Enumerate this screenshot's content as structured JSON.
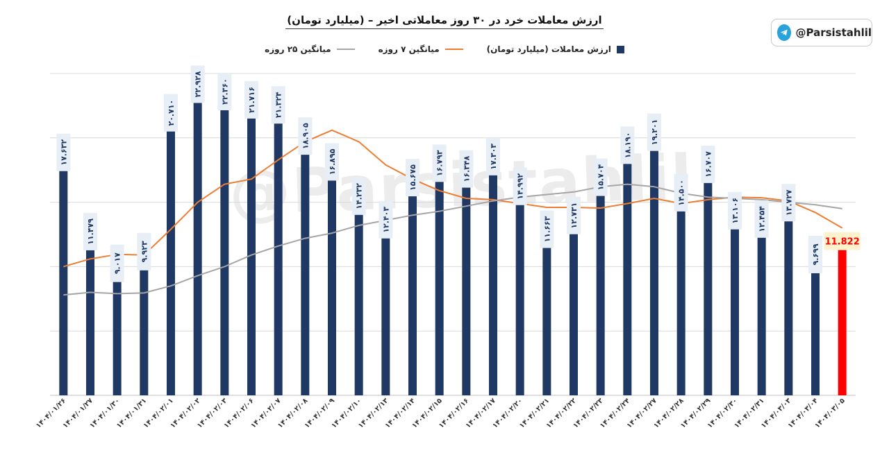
{
  "title": "ارزش معاملات خرد در ۳۰ روز معاملاتی اخیر – (میلیارد تومان)",
  "legend": {
    "bars": "ارزش معاملات (میلیارد تومان)",
    "ma7": "میانگین ۷ روزه",
    "ma25": "میانگین ۲۵ روزه"
  },
  "brand": {
    "handle": "@Parsistahlil",
    "icon": "telegram-icon"
  },
  "watermark": "@Parsistahlil",
  "colors": {
    "bar": "#1f3864",
    "bar_highlight": "#ff0000",
    "ma7": "#ed7d31",
    "ma25": "#a5a5a5",
    "label_bg": "#e7eef6",
    "highlight_label_bg": "#fdf2cc",
    "grid": "#d9d9d9"
  },
  "chart_data": {
    "type": "bar",
    "grid": true,
    "legend_position": "top",
    "ylim": [
      0,
      25
    ],
    "categories": [
      "۱۴۰۴/۰۱/۲۶",
      "۱۴۰۴/۰۱/۲۷",
      "۱۴۰۴/۰۱/۳۰",
      "۱۴۰۴/۰۱/۳۱",
      "۱۴۰۴/۰۲/۰۱",
      "۱۴۰۴/۰۲/۰۲",
      "۱۴۰۴/۰۲/۰۳",
      "۱۴۰۴/۰۲/۰۶",
      "۱۴۰۴/۰۲/۰۷",
      "۱۴۰۴/۰۲/۰۸",
      "۱۴۰۴/۰۲/۰۹",
      "۱۴۰۴/۰۲/۱۰",
      "۱۴۰۴/۰۲/۱۳",
      "۱۴۰۴/۰۲/۱۴",
      "۱۴۰۴/۰۲/۱۵",
      "۱۴۰۴/۰۲/۱۶",
      "۱۴۰۴/۰۲/۱۷",
      "۱۴۰۴/۰۲/۲۰",
      "۱۴۰۴/۰۲/۲۱",
      "۱۴۰۴/۰۲/۲۲",
      "۱۴۰۴/۰۲/۲۳",
      "۱۴۰۴/۰۲/۲۴",
      "۱۴۰۴/۰۲/۲۷",
      "۱۴۰۴/۰۲/۲۸",
      "۱۴۰۴/۰۲/۲۹",
      "۱۴۰۴/۰۲/۳۰",
      "۱۴۰۴/۰۲/۳۱",
      "۱۴۰۴/۰۳/۰۳",
      "۱۴۰۴/۰۳/۰۴",
      "۱۴۰۴/۰۳/۰۵"
    ],
    "series": [
      {
        "name": "ارزش معاملات (میلیارد تومان)",
        "values": [
          17.632,
          11.479,
          9.017,
          9.923,
          20.71,
          22.928,
          22.36,
          21.716,
          21.324,
          18.905,
          16.895,
          14.232,
          12.403,
          15.675,
          16.793,
          16.348,
          17.303,
          14.992,
          11.663,
          12.731,
          15.704,
          18.19,
          19.201,
          14.5,
          16.707,
          13.106,
          12.454,
          13.727,
          9.699,
          11.822
        ],
        "labels": [
          "۱۷.۶۳۲",
          "۱۱.۴۷۹",
          "۹.۰۱۷",
          "۹.۹۲۳",
          "۲۰.۷۱۰",
          "۲۲.۹۲۸",
          "۲۲.۳۶۰",
          "۲۱.۷۱۶",
          "۲۱.۳۲۴",
          "۱۸.۹۰۵",
          "۱۶.۸۹۵",
          "۱۴.۲۳۲",
          "۱۲.۴۰۳",
          "۱۵.۶۷۵",
          "۱۶.۷۹۳",
          "۱۶.۳۴۸",
          "۱۷.۳۰۳",
          "۱۴.۹۹۲",
          "۱۱.۶۶۳",
          "۱۲.۷۳۱",
          "۱۵.۷۰۴",
          "۱۸.۱۹۰",
          "۱۹.۲۰۱",
          "۱۴.۵۰۰",
          "۱۶.۷۰۷",
          "۱۳.۱۰۶",
          "۱۲.۴۵۴",
          "۱۳.۷۲۷",
          "۹.۶۹۹",
          "11.822"
        ]
      },
      {
        "name": "میانگین ۷ روزه",
        "values": [
          10.0,
          10.6,
          10.95,
          10.9,
          12.9,
          15.0,
          16.4,
          16.8,
          18.3,
          19.7,
          20.6,
          19.7,
          17.9,
          16.8,
          15.9,
          15.3,
          15.2,
          14.9,
          14.6,
          14.6,
          14.55,
          14.9,
          15.3,
          14.9,
          15.2,
          15.4,
          15.35,
          15.1,
          14.2,
          13.0
        ]
      },
      {
        "name": "میانگین ۲۵ روزه",
        "values": [
          7.8,
          8.0,
          7.9,
          7.95,
          8.5,
          9.3,
          10.0,
          10.9,
          11.6,
          12.2,
          12.6,
          13.2,
          13.6,
          14.0,
          14.3,
          14.7,
          15.1,
          15.4,
          15.6,
          15.8,
          16.2,
          16.4,
          16.2,
          15.7,
          15.4,
          15.3,
          15.2,
          15.0,
          14.8,
          14.5
        ]
      }
    ]
  }
}
